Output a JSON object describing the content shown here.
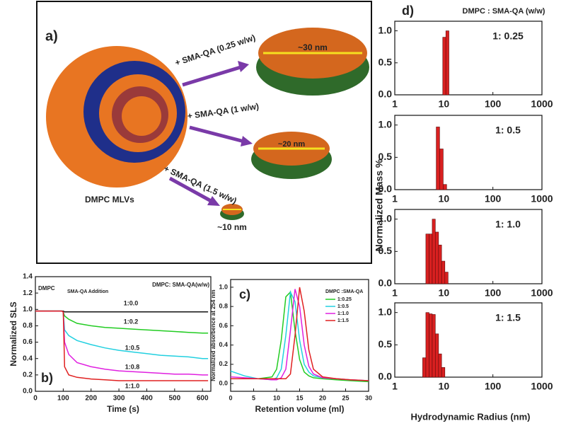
{
  "diagram": {
    "panel_label": "a)",
    "start_label": "DMPC MLVs",
    "steps": [
      {
        "arrow_label": "+ SMA-QA (0.25 w/w)",
        "size_label": "~30 nm"
      },
      {
        "arrow_label": "+ SMA-QA (1 w/w)",
        "size_label": "~20 nm"
      },
      {
        "arrow_label": "+ SMA-QA (1.5 w/w)",
        "size_label": "~10 nm"
      }
    ]
  },
  "panel_d": {
    "panel_label": "d)",
    "legend_title": "DMPC : SMA-QA (w/w)",
    "ylabel": "Normalized Mass %",
    "xlabel": "Hydrodynamic Radius (nm)"
  },
  "chart_data": [
    {
      "type": "line",
      "panel_label": "b)",
      "ylabel": "Normalized SLS",
      "xlabel": "Time (s)",
      "legend_title": "DMPC: SMA-QA(w/w)",
      "annotations": [
        "DMPC",
        "SMA-QA Addition"
      ],
      "x": [
        0,
        50,
        95,
        100,
        105,
        120,
        150,
        200,
        250,
        300,
        350,
        400,
        450,
        500,
        550,
        600,
        620
      ],
      "series": [
        {
          "name": "1:0.0",
          "color": "#111111",
          "values": [
            0.98,
            0.98,
            0.98,
            0.98,
            0.97,
            0.97,
            0.97,
            0.97,
            0.97,
            0.97,
            0.97,
            0.97,
            0.97,
            0.97,
            0.97,
            0.97,
            0.97
          ]
        },
        {
          "name": "1:0.2",
          "color": "#22cc22",
          "values": [
            0.98,
            0.98,
            0.98,
            0.97,
            0.92,
            0.88,
            0.83,
            0.8,
            0.78,
            0.77,
            0.76,
            0.75,
            0.74,
            0.73,
            0.72,
            0.71,
            0.71
          ]
        },
        {
          "name": "1:0.5",
          "color": "#22d0e0",
          "values": [
            0.98,
            0.98,
            0.98,
            0.97,
            0.75,
            0.68,
            0.62,
            0.57,
            0.53,
            0.5,
            0.48,
            0.46,
            0.44,
            0.43,
            0.42,
            0.4,
            0.4
          ]
        },
        {
          "name": "1:0.8",
          "color": "#e020e0",
          "values": [
            0.98,
            0.98,
            0.98,
            0.97,
            0.6,
            0.45,
            0.35,
            0.3,
            0.27,
            0.25,
            0.24,
            0.23,
            0.22,
            0.21,
            0.21,
            0.2,
            0.2
          ]
        },
        {
          "name": "1:1.0",
          "color": "#e02020",
          "values": [
            0.98,
            0.98,
            0.98,
            0.97,
            0.3,
            0.2,
            0.17,
            0.15,
            0.14,
            0.13,
            0.13,
            0.13,
            0.13,
            0.13,
            0.13,
            0.13,
            0.13
          ]
        }
      ],
      "xlim": [
        0,
        630
      ],
      "xticks": [
        0,
        100,
        200,
        300,
        400,
        500,
        600
      ],
      "ylim": [
        0,
        1.4
      ],
      "yticks": [
        {
          "value": 0,
          "label": "0.0"
        },
        {
          "value": 0.2,
          "label": "0.2"
        },
        {
          "value": 0.4,
          "label": "0.4"
        },
        {
          "value": 0.6,
          "label": "0.6"
        },
        {
          "value": 0.8,
          "label": "0.8"
        },
        {
          "value": 1,
          "label": "1.0"
        },
        {
          "value": 1.2,
          "label": "1.2"
        },
        {
          "value": 1.4,
          "label": "1.4"
        }
      ]
    },
    {
      "type": "line",
      "panel_label": "c)",
      "ylabel": "Normalized absorbence at 254 nm",
      "xlabel": "Retention volume (ml)",
      "legend_title": "DMPC :SMA-QA",
      "x": [
        0,
        3,
        6,
        9,
        10,
        11,
        12,
        13,
        14,
        15,
        16,
        17,
        18,
        20,
        23,
        26,
        30
      ],
      "series": [
        {
          "name": "1:0.25",
          "color": "#22cc22",
          "values": [
            0.05,
            0.05,
            0.05,
            0.07,
            0.15,
            0.45,
            0.9,
            0.95,
            0.55,
            0.25,
            0.12,
            0.08,
            0.06,
            0.05,
            0.04,
            0.03,
            0.02
          ]
        },
        {
          "name": "1:0.5",
          "color": "#22d0e0",
          "values": [
            0.13,
            0.08,
            0.05,
            0.04,
            0.06,
            0.15,
            0.5,
            0.95,
            0.85,
            0.45,
            0.2,
            0.12,
            0.08,
            0.06,
            0.05,
            0.04,
            0.03
          ]
        },
        {
          "name": "1:1.0",
          "color": "#e020e0",
          "values": [
            0.07,
            0.06,
            0.05,
            0.04,
            0.04,
            0.06,
            0.15,
            0.55,
            0.98,
            0.8,
            0.4,
            0.18,
            0.1,
            0.06,
            0.05,
            0.04,
            0.03
          ]
        },
        {
          "name": "1:1.5",
          "color": "#e02020",
          "values": [
            0.05,
            0.05,
            0.05,
            0.05,
            0.05,
            0.05,
            0.05,
            0.1,
            0.5,
            1.0,
            0.75,
            0.35,
            0.15,
            0.07,
            0.05,
            0.04,
            0.03
          ]
        }
      ],
      "xlim": [
        0,
        30
      ],
      "xticks": [
        0,
        5,
        10,
        15,
        20,
        25,
        30
      ],
      "ylim": [
        -0.08,
        1.08
      ],
      "yticks": [
        {
          "value": 0,
          "label": "0.0"
        },
        {
          "value": 0.2,
          "label": "0.2"
        },
        {
          "value": 0.4,
          "label": "0.4"
        },
        {
          "value": 0.6,
          "label": "0.6"
        },
        {
          "value": 0.8,
          "label": "0.8"
        },
        {
          "value": 1,
          "label": "1.0"
        }
      ]
    },
    {
      "type": "histogram",
      "title": "1: 0.25",
      "color": "#d92020",
      "bins": [
        9.5,
        11,
        12.7
      ],
      "values": [
        0.9,
        1.0
      ],
      "xlog": true,
      "xlim": [
        1,
        1000
      ],
      "xticks": [
        1,
        10,
        100,
        1000
      ],
      "ylim": [
        0,
        1.15
      ],
      "yticks": [
        {
          "value": 0,
          "label": "0.0"
        },
        {
          "value": 0.5,
          "label": "0.5"
        },
        {
          "value": 1,
          "label": "1.0"
        }
      ]
    },
    {
      "type": "histogram",
      "title": "1: 0.5",
      "color": "#d92020",
      "bins": [
        7,
        8.2,
        9.7,
        11.4
      ],
      "values": [
        0.97,
        0.63,
        0.08
      ],
      "xlog": true,
      "xlim": [
        1,
        1000
      ],
      "xticks": [
        1,
        10,
        100,
        1000
      ],
      "ylim": [
        0,
        1.15
      ],
      "yticks": [
        {
          "value": 0,
          "label": "0.0"
        },
        {
          "value": 0.5,
          "label": "0.5"
        },
        {
          "value": 1,
          "label": "1.0"
        }
      ]
    },
    {
      "type": "histogram",
      "title": "1: 1.0",
      "color": "#d92020",
      "bins": [
        4.3,
        5,
        5.8,
        6.7,
        7.8,
        9,
        10.5,
        12.2
      ],
      "values": [
        0.77,
        0.77,
        1.0,
        0.8,
        0.6,
        0.35,
        0.18
      ],
      "xlog": true,
      "xlim": [
        1,
        1000
      ],
      "xticks": [
        1,
        10,
        100,
        1000
      ],
      "ylim": [
        0,
        1.15
      ],
      "yticks": [
        {
          "value": 0,
          "label": "0.0"
        },
        {
          "value": 0.5,
          "label": "0.5"
        },
        {
          "value": 1,
          "label": "1.0"
        }
      ]
    },
    {
      "type": "histogram",
      "title": "1: 1.5",
      "color": "#d92020",
      "bins": [
        3.7,
        4.3,
        5,
        5.8,
        6.7,
        7.8,
        9,
        10.5
      ],
      "values": [
        0.3,
        1.0,
        0.98,
        0.97,
        0.67,
        0.36,
        0.15
      ],
      "xlog": true,
      "xlim": [
        1,
        1000
      ],
      "xticks": [
        1,
        10,
        100,
        1000
      ],
      "ylim": [
        0,
        1.15
      ],
      "yticks": [
        {
          "value": 0,
          "label": "0.0"
        },
        {
          "value": 0.5,
          "label": "0.5"
        },
        {
          "value": 1,
          "label": "1.0"
        }
      ]
    }
  ]
}
